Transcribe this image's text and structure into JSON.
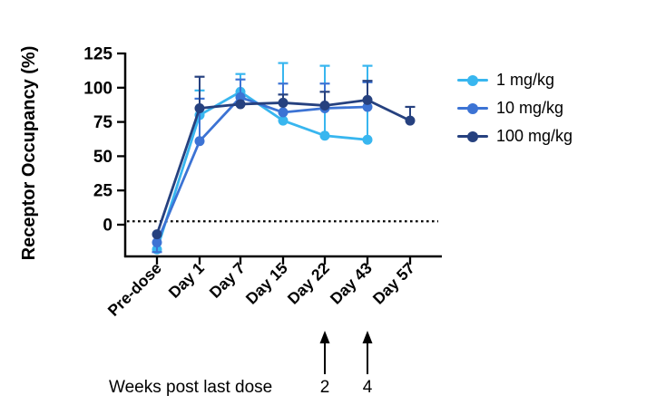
{
  "chart_data": {
    "type": "line",
    "title": "",
    "ylabel": "Receptor Occupancy (%)",
    "xlabel": "",
    "categories": [
      "Pre-dose",
      "Day 1",
      "Day 7",
      "Day 15",
      "Day 22",
      "Day 43",
      "Day 57"
    ],
    "y_ticks": [
      0,
      25,
      50,
      75,
      100,
      125
    ],
    "ylim": [
      -22,
      125
    ],
    "grid": false,
    "legend_position": "right-outside",
    "threshold_line": {
      "value": 2.5,
      "style": "dotted",
      "color": "#000000"
    },
    "series": [
      {
        "name": "1 mg/kg",
        "color": "#38B6EF",
        "values": [
          -18,
          80,
          97,
          76,
          65,
          62,
          null
        ],
        "err_top": [
          null,
          98,
          110,
          118,
          116,
          116,
          null
        ],
        "err_bottom": [
          null,
          null,
          null,
          null,
          null,
          null,
          null
        ]
      },
      {
        "name": "10 mg/kg",
        "color": "#3C73D4",
        "values": [
          -13,
          61,
          93,
          82,
          85,
          86,
          null
        ],
        "err_top": [
          null,
          92,
          106,
          103,
          103,
          104,
          null
        ],
        "err_bottom": [
          -20,
          null,
          null,
          null,
          null,
          null,
          null
        ]
      },
      {
        "name": "100 mg/kg",
        "color": "#26417F",
        "values": [
          -7,
          85,
          88,
          89,
          87,
          91,
          76
        ],
        "err_top": [
          null,
          108,
          null,
          95,
          97,
          105,
          86
        ],
        "err_bottom": [
          null,
          null,
          null,
          null,
          null,
          null,
          null
        ]
      }
    ],
    "annotations": {
      "caption": "Weeks post last dose",
      "arrows": [
        {
          "category": "Day 22",
          "label": "2"
        },
        {
          "category": "Day 43",
          "label": "4"
        }
      ]
    }
  }
}
